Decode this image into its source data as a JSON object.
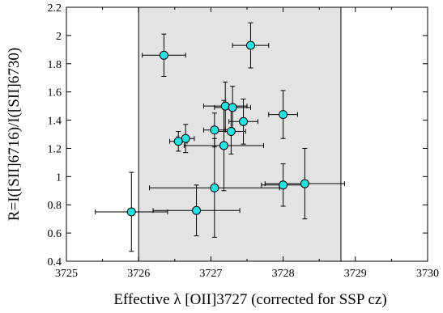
{
  "chart_data": {
    "type": "scatter",
    "title": "",
    "xlabel": "Effective λ [OII]3727 (corrected for SSP cz)",
    "ylabel": "R=I([SII]6716)/I([SII]6730)",
    "xlim": [
      3725,
      3730
    ],
    "ylim": [
      0.4,
      2.2
    ],
    "xticks": [
      3725,
      3726,
      3727,
      3728,
      3729,
      3730
    ],
    "xtick_labels": [
      "3725",
      "3726",
      "3727",
      "3728",
      "3729",
      "3730"
    ],
    "yticks": [
      0.4,
      0.6,
      0.8,
      1.0,
      1.2,
      1.4,
      1.6,
      1.8,
      2.0,
      2.2
    ],
    "ytick_labels": [
      "0.4",
      "0.6",
      "0.8",
      "1",
      "1.2",
      "1.4",
      "1.6",
      "1.8",
      "2",
      "2.2"
    ],
    "grid": false,
    "shaded_band": {
      "x": [
        3726.0,
        3728.8
      ],
      "color": "#e3e3e3"
    },
    "marker_color": "#22e2e2",
    "points": [
      {
        "x": 3726.35,
        "y": 1.86,
        "xerr": 0.3,
        "yerr": 0.15
      },
      {
        "x": 3727.55,
        "y": 1.93,
        "xerr": 0.25,
        "yerr": 0.16
      },
      {
        "x": 3727.2,
        "y": 1.5,
        "xerr": 0.3,
        "yerr": 0.17
      },
      {
        "x": 3727.3,
        "y": 1.49,
        "xerr": 0.25,
        "yerr": 0.15
      },
      {
        "x": 3728.0,
        "y": 1.44,
        "xerr": 0.2,
        "yerr": 0.17
      },
      {
        "x": 3727.45,
        "y": 1.39,
        "xerr": 0.2,
        "yerr": 0.16
      },
      {
        "x": 3727.05,
        "y": 1.33,
        "xerr": 0.15,
        "yerr": 0.12
      },
      {
        "x": 3727.28,
        "y": 1.32,
        "xerr": 0.2,
        "yerr": 0.16
      },
      {
        "x": 3726.65,
        "y": 1.27,
        "xerr": 0.12,
        "yerr": 0.1
      },
      {
        "x": 3726.55,
        "y": 1.25,
        "xerr": 0.12,
        "yerr": 0.07
      },
      {
        "x": 3727.18,
        "y": 1.22,
        "xerr": 0.55,
        "yerr": 0.32
      },
      {
        "x": 3728.0,
        "y": 0.94,
        "xerr": 0.3,
        "yerr": 0.15
      },
      {
        "x": 3728.3,
        "y": 0.95,
        "xerr": 0.55,
        "yerr": 0.25
      },
      {
        "x": 3727.05,
        "y": 0.92,
        "xerr": 0.9,
        "yerr": 0.35
      },
      {
        "x": 3725.9,
        "y": 0.75,
        "xerr": 0.5,
        "yerr": 0.28
      },
      {
        "x": 3726.8,
        "y": 0.76,
        "xerr": 0.6,
        "yerr": 0.18
      }
    ]
  }
}
